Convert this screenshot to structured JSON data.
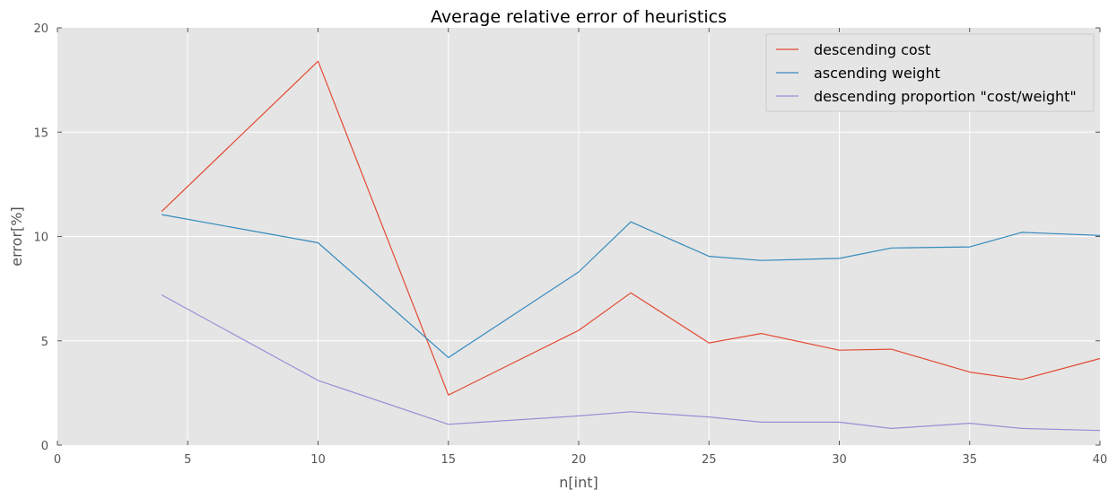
{
  "chart_data": {
    "type": "line",
    "title": "Average relative error of heuristics",
    "xlabel": "n[int]",
    "ylabel": "error[%]",
    "xlim": [
      0,
      40
    ],
    "ylim": [
      0,
      20
    ],
    "xticks": [
      0,
      5,
      10,
      15,
      20,
      25,
      30,
      35,
      40
    ],
    "yticks": [
      0,
      5,
      10,
      15,
      20
    ],
    "grid": true,
    "legend_position": "top-right",
    "background": "#e5e5e5",
    "series": [
      {
        "name": "descending cost",
        "color": "#e24a33",
        "points": [
          [
            4,
            11.2
          ],
          [
            10,
            18.4
          ],
          [
            15,
            2.4
          ],
          [
            20,
            5.5
          ],
          [
            22,
            7.3
          ],
          [
            25,
            4.9
          ],
          [
            27,
            5.35
          ],
          [
            30,
            4.55
          ],
          [
            32,
            4.6
          ],
          [
            35,
            3.5
          ],
          [
            37,
            3.15
          ],
          [
            40,
            4.15
          ]
        ]
      },
      {
        "name": "ascending weight",
        "color": "#348abd",
        "points": [
          [
            4,
            11.05
          ],
          [
            10,
            9.7
          ],
          [
            15,
            4.2
          ],
          [
            20,
            8.3
          ],
          [
            22,
            10.7
          ],
          [
            25,
            9.05
          ],
          [
            27,
            8.85
          ],
          [
            30,
            8.95
          ],
          [
            32,
            9.45
          ],
          [
            35,
            9.5
          ],
          [
            37,
            10.2
          ],
          [
            40,
            10.05
          ]
        ]
      },
      {
        "name": "descending proportion \"cost/weight\"",
        "color": "#988ed5",
        "points": [
          [
            4,
            7.2
          ],
          [
            10,
            3.1
          ],
          [
            15,
            1.0
          ],
          [
            20,
            1.4
          ],
          [
            22,
            1.6
          ],
          [
            25,
            1.35
          ],
          [
            27,
            1.1
          ],
          [
            30,
            1.1
          ],
          [
            32,
            0.8
          ],
          [
            35,
            1.05
          ],
          [
            37,
            0.8
          ],
          [
            40,
            0.7
          ]
        ]
      }
    ]
  }
}
